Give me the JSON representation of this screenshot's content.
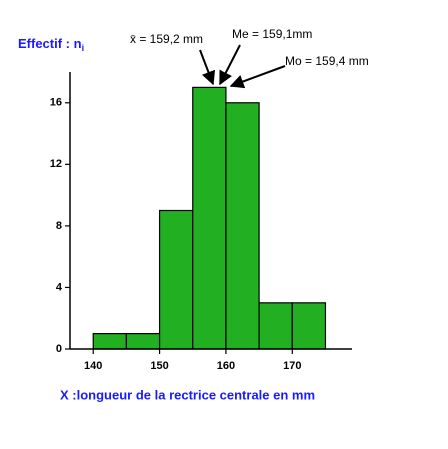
{
  "chart_data": {
    "type": "histogram",
    "y_label": "Effectif : n",
    "y_label_subscript": "i",
    "x_label": "X :longueur de la rectrice centrale en mm",
    "annotations": [
      "x̄ = 159,2 mm",
      "Me = 159,1mm",
      "Mo = 159,4 mm"
    ],
    "bins": [
      140,
      145,
      150,
      155,
      160,
      165,
      170,
      175
    ],
    "values": [
      1,
      1,
      9,
      17,
      16,
      3,
      3
    ],
    "color": "#22b022",
    "xlim": [
      136.5,
      179
    ],
    "xticks": [
      140,
      150,
      160,
      170
    ],
    "ylim": [
      0,
      18
    ],
    "yticks": [
      0,
      4,
      8,
      12,
      16
    ]
  }
}
